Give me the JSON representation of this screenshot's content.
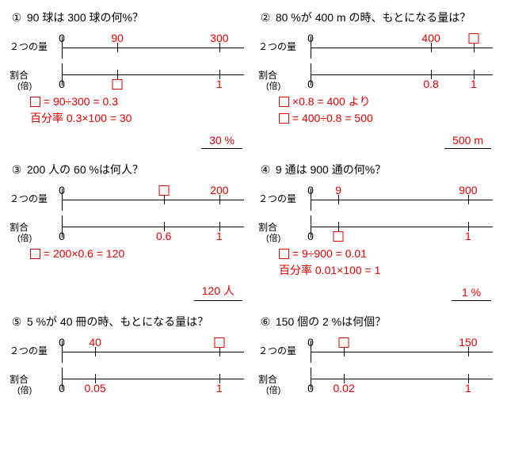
{
  "labels": {
    "two_qty": "２つの量",
    "ratio": "割合",
    "ratio_sub": "(倍)"
  },
  "problems": [
    {
      "num": "①",
      "q": "90 球は 300 球の何%？",
      "top": {
        "zero": "0",
        "ticks": [
          {
            "pos": 30,
            "label": "90",
            "red": true
          },
          {
            "pos": 85,
            "label": "300",
            "red": true
          }
        ]
      },
      "bot": {
        "zero": "0",
        "ticks": [
          {
            "pos": 30,
            "box": true,
            "red": true
          },
          {
            "pos": 85,
            "label": "1",
            "red": true
          }
        ]
      },
      "work": [
        "□ = 90÷300 = 0.3",
        "百分率 0.3×100 = 30"
      ],
      "ans": "30 %"
    },
    {
      "num": "②",
      "q": "80 %が 400 m の時、もとになる量は？",
      "top": {
        "zero": "0",
        "ticks": [
          {
            "pos": 65,
            "label": "400",
            "red": true
          },
          {
            "pos": 88,
            "box": true,
            "red": true
          }
        ]
      },
      "bot": {
        "zero": "0",
        "ticks": [
          {
            "pos": 65,
            "label": "0.8",
            "red": true
          },
          {
            "pos": 88,
            "label": "1",
            "red": true
          }
        ]
      },
      "work": [
        "□ ×0.8 = 400 より",
        "□ = 400÷0.8 = 500"
      ],
      "ans": "500 m"
    },
    {
      "num": "③",
      "q": "200 人の 60 %は何人？",
      "top": {
        "zero": "0",
        "ticks": [
          {
            "pos": 55,
            "box": true,
            "red": true
          },
          {
            "pos": 85,
            "label": "200",
            "red": true
          }
        ]
      },
      "bot": {
        "zero": "0",
        "ticks": [
          {
            "pos": 55,
            "label": "0.6",
            "red": true
          },
          {
            "pos": 85,
            "label": "1",
            "red": true
          }
        ]
      },
      "work": [
        "□ = 200×0.6 = 120"
      ],
      "ans": "120 人"
    },
    {
      "num": "④",
      "q": "9 通は 900 通の何%？",
      "top": {
        "zero": "0",
        "ticks": [
          {
            "pos": 15,
            "label": "9",
            "red": true
          },
          {
            "pos": 85,
            "label": "900",
            "red": true
          }
        ]
      },
      "bot": {
        "zero": "0",
        "ticks": [
          {
            "pos": 15,
            "box": true,
            "red": true
          },
          {
            "pos": 85,
            "label": "1",
            "red": true
          }
        ]
      },
      "work": [
        "□ = 9÷900 = 0.01",
        "百分率 0.01×100 = 1"
      ],
      "ans": "1 %"
    },
    {
      "num": "⑤",
      "q": "5 %が 40 冊の時、もとになる量は？",
      "top": {
        "zero": "0",
        "ticks": [
          {
            "pos": 18,
            "label": "40",
            "red": true
          },
          {
            "pos": 85,
            "box": true,
            "red": true
          }
        ]
      },
      "bot": {
        "zero": "0",
        "ticks": [
          {
            "pos": 18,
            "label": "0.05",
            "red": true
          },
          {
            "pos": 85,
            "label": "1",
            "red": true
          }
        ]
      },
      "work": [],
      "ans": ""
    },
    {
      "num": "⑥",
      "q": "150 個の 2 %は何個？",
      "top": {
        "zero": "0",
        "ticks": [
          {
            "pos": 18,
            "box": true,
            "red": true
          },
          {
            "pos": 85,
            "label": "150",
            "red": true
          }
        ]
      },
      "bot": {
        "zero": "0",
        "ticks": [
          {
            "pos": 18,
            "label": "0.02",
            "red": true
          },
          {
            "pos": 85,
            "label": "1",
            "red": true
          }
        ]
      },
      "work": [],
      "ans": ""
    }
  ]
}
